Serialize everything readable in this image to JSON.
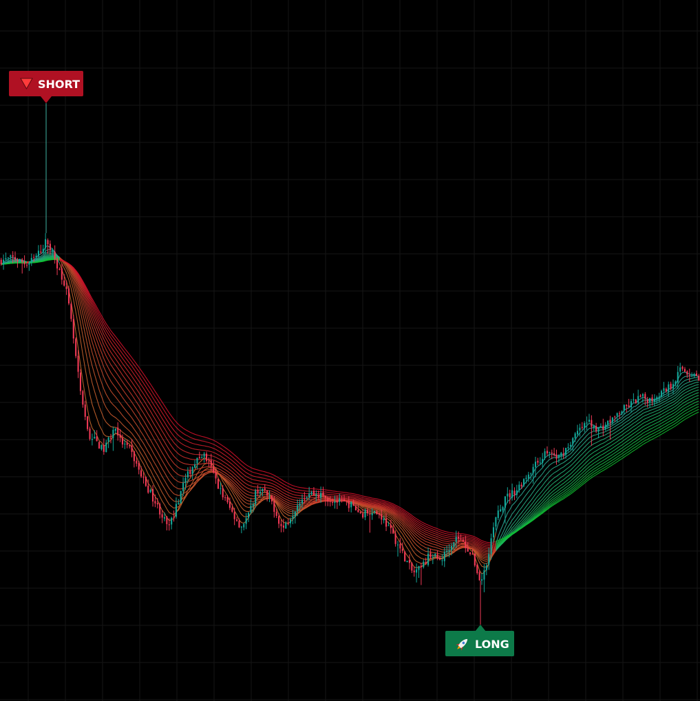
{
  "theme": {
    "background": "#000000",
    "grid": "#161616",
    "bull_candle": "#13a89a",
    "bear_candle": "#f23a57",
    "ribbon_bull_inner": "#2ea39a",
    "ribbon_bull_outer": "#0fbf2f",
    "ribbon_bear_inner": "#c66a2e",
    "ribbon_bear_outer": "#d0102a",
    "short_badge": "#b01123",
    "long_badge": "#0d7a49"
  },
  "icons": {
    "short": "triangle-down-icon",
    "long": "rocket-icon"
  },
  "chart_data": {
    "type": "candlestick",
    "title": "",
    "xlabel": "",
    "ylabel": "",
    "grid": true,
    "legend": "none",
    "bars": 300,
    "ylim": [
      0,
      100
    ],
    "price_path": [
      [
        0,
        72
      ],
      [
        20,
        72.5
      ],
      [
        40,
        71.2
      ],
      [
        55,
        73.2
      ],
      [
        68,
        76.2
      ],
      [
        85,
        70.5
      ],
      [
        95,
        67
      ],
      [
        105,
        58
      ],
      [
        112,
        50
      ],
      [
        120,
        42
      ],
      [
        130,
        36
      ],
      [
        140,
        35
      ],
      [
        150,
        33
      ],
      [
        160,
        36
      ],
      [
        168,
        38
      ],
      [
        175,
        35
      ],
      [
        190,
        33
      ],
      [
        205,
        28
      ],
      [
        220,
        24
      ],
      [
        235,
        20
      ],
      [
        245,
        17
      ],
      [
        255,
        21
      ],
      [
        265,
        26
      ],
      [
        280,
        30
      ],
      [
        295,
        32.5
      ],
      [
        305,
        30
      ],
      [
        320,
        25
      ],
      [
        335,
        21
      ],
      [
        350,
        17.5
      ],
      [
        362,
        20
      ],
      [
        372,
        25
      ],
      [
        382,
        25
      ],
      [
        395,
        22.5
      ],
      [
        410,
        17
      ],
      [
        420,
        19
      ],
      [
        435,
        23
      ],
      [
        450,
        24.5
      ],
      [
        465,
        24
      ],
      [
        480,
        23
      ],
      [
        495,
        22.5
      ],
      [
        510,
        22
      ],
      [
        525,
        20
      ],
      [
        540,
        21
      ],
      [
        555,
        19.5
      ],
      [
        570,
        16
      ],
      [
        585,
        12
      ],
      [
        600,
        8
      ],
      [
        612,
        9
      ],
      [
        625,
        12
      ],
      [
        640,
        10.5
      ],
      [
        655,
        14
      ],
      [
        665,
        15.5
      ],
      [
        680,
        13
      ],
      [
        690,
        10
      ],
      [
        698,
        6
      ],
      [
        705,
        9
      ],
      [
        712,
        14
      ],
      [
        720,
        19
      ],
      [
        735,
        23.5
      ],
      [
        750,
        25
      ],
      [
        765,
        28
      ],
      [
        780,
        30.5
      ],
      [
        795,
        33
      ],
      [
        810,
        31.5
      ],
      [
        825,
        34
      ],
      [
        840,
        37
      ],
      [
        855,
        39
      ],
      [
        870,
        37.5
      ],
      [
        885,
        39
      ],
      [
        900,
        41
      ],
      [
        915,
        42.5
      ],
      [
        930,
        44
      ],
      [
        945,
        43.5
      ],
      [
        960,
        45
      ],
      [
        975,
        46.5
      ],
      [
        990,
        50
      ],
      [
        1000,
        49
      ],
      [
        1017,
        48
      ]
    ],
    "signals": [
      {
        "type": "short",
        "label": "SHORT",
        "at_x": 67
      },
      {
        "type": "long",
        "label": "LONG",
        "at_x": 698
      }
    ]
  }
}
